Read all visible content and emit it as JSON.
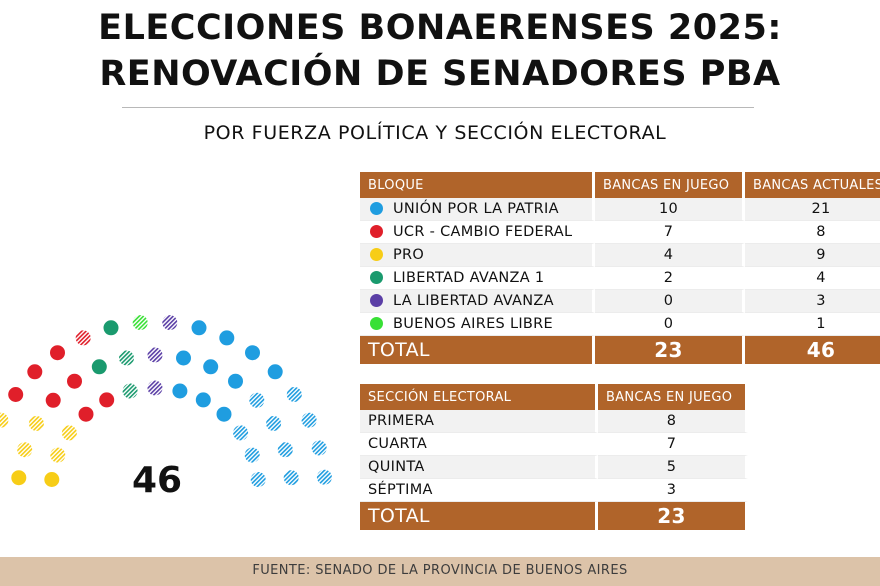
{
  "header": {
    "title_line1": "ELECCIONES BONAERENSES 2025:",
    "title_line2": "RENOVACIÓN DE SENADORES PBA",
    "subtitle": "POR FUERZA POLÍTICA Y SECCIÓN ELECTORAL"
  },
  "chart_data": [
    {
      "type": "parliament",
      "total_label": "46",
      "series": [
        {
          "name": "UNIÓN POR LA PATRIA",
          "color": "#1f9de0",
          "seats_en_juego": 10,
          "seats_total": 21
        },
        {
          "name": "UCR - CAMBIO FEDERAL",
          "color": "#e01f2a",
          "seats_en_juego": 7,
          "seats_total": 8
        },
        {
          "name": "PRO",
          "color": "#f7cd17",
          "seats_en_juego": 4,
          "seats_total": 9
        },
        {
          "name": "LIBERTAD AVANZA 1",
          "color": "#1a9a6e",
          "seats_en_juego": 2,
          "seats_total": 4
        },
        {
          "name": "LA LIBERTAD AVANZA",
          "color": "#5b3fa6",
          "seats_en_juego": 0,
          "seats_total": 3
        },
        {
          "name": "BUENOS AIRES LIBRE",
          "color": "#38e035",
          "seats_en_juego": 0,
          "seats_total": 1
        }
      ]
    },
    {
      "type": "table",
      "columns": [
        "BLOQUE",
        "BANCAS EN JUEGO",
        "BANCAS ACTUALES"
      ],
      "rows": [
        {
          "name": "UNIÓN POR LA PATRIA",
          "color": "#1f9de0",
          "en_juego": "10",
          "actuales": "21"
        },
        {
          "name": "UCR - CAMBIO FEDERAL",
          "color": "#e01f2a",
          "en_juego": "7",
          "actuales": "8"
        },
        {
          "name": "PRO",
          "color": "#f7cd17",
          "en_juego": "4",
          "actuales": "9"
        },
        {
          "name": "LIBERTAD AVANZA 1",
          "color": "#1a9a6e",
          "en_juego": "2",
          "actuales": "4"
        },
        {
          "name": "LA LIBERTAD AVANZA",
          "color": "#5b3fa6",
          "en_juego": "0",
          "actuales": "3"
        },
        {
          "name": "BUENOS AIRES LIBRE",
          "color": "#38e035",
          "en_juego": "0",
          "actuales": "1"
        }
      ],
      "total": {
        "label": "TOTAL",
        "en_juego": "23",
        "actuales": "46"
      }
    },
    {
      "type": "table",
      "columns": [
        "SECCIÓN ELECTORAL",
        "BANCAS EN JUEGO"
      ],
      "rows": [
        {
          "name": "PRIMERA",
          "en_juego": "8"
        },
        {
          "name": "CUARTA",
          "en_juego": "7"
        },
        {
          "name": "QUINTA",
          "en_juego": "5"
        },
        {
          "name": "SÉPTIMA",
          "en_juego": "3"
        }
      ],
      "total": {
        "label": "TOTAL",
        "en_juego": "23"
      }
    }
  ],
  "footer": {
    "source": "FUENTE: SENADO DE LA PROVINCIA DE BUENOS AIRES"
  }
}
